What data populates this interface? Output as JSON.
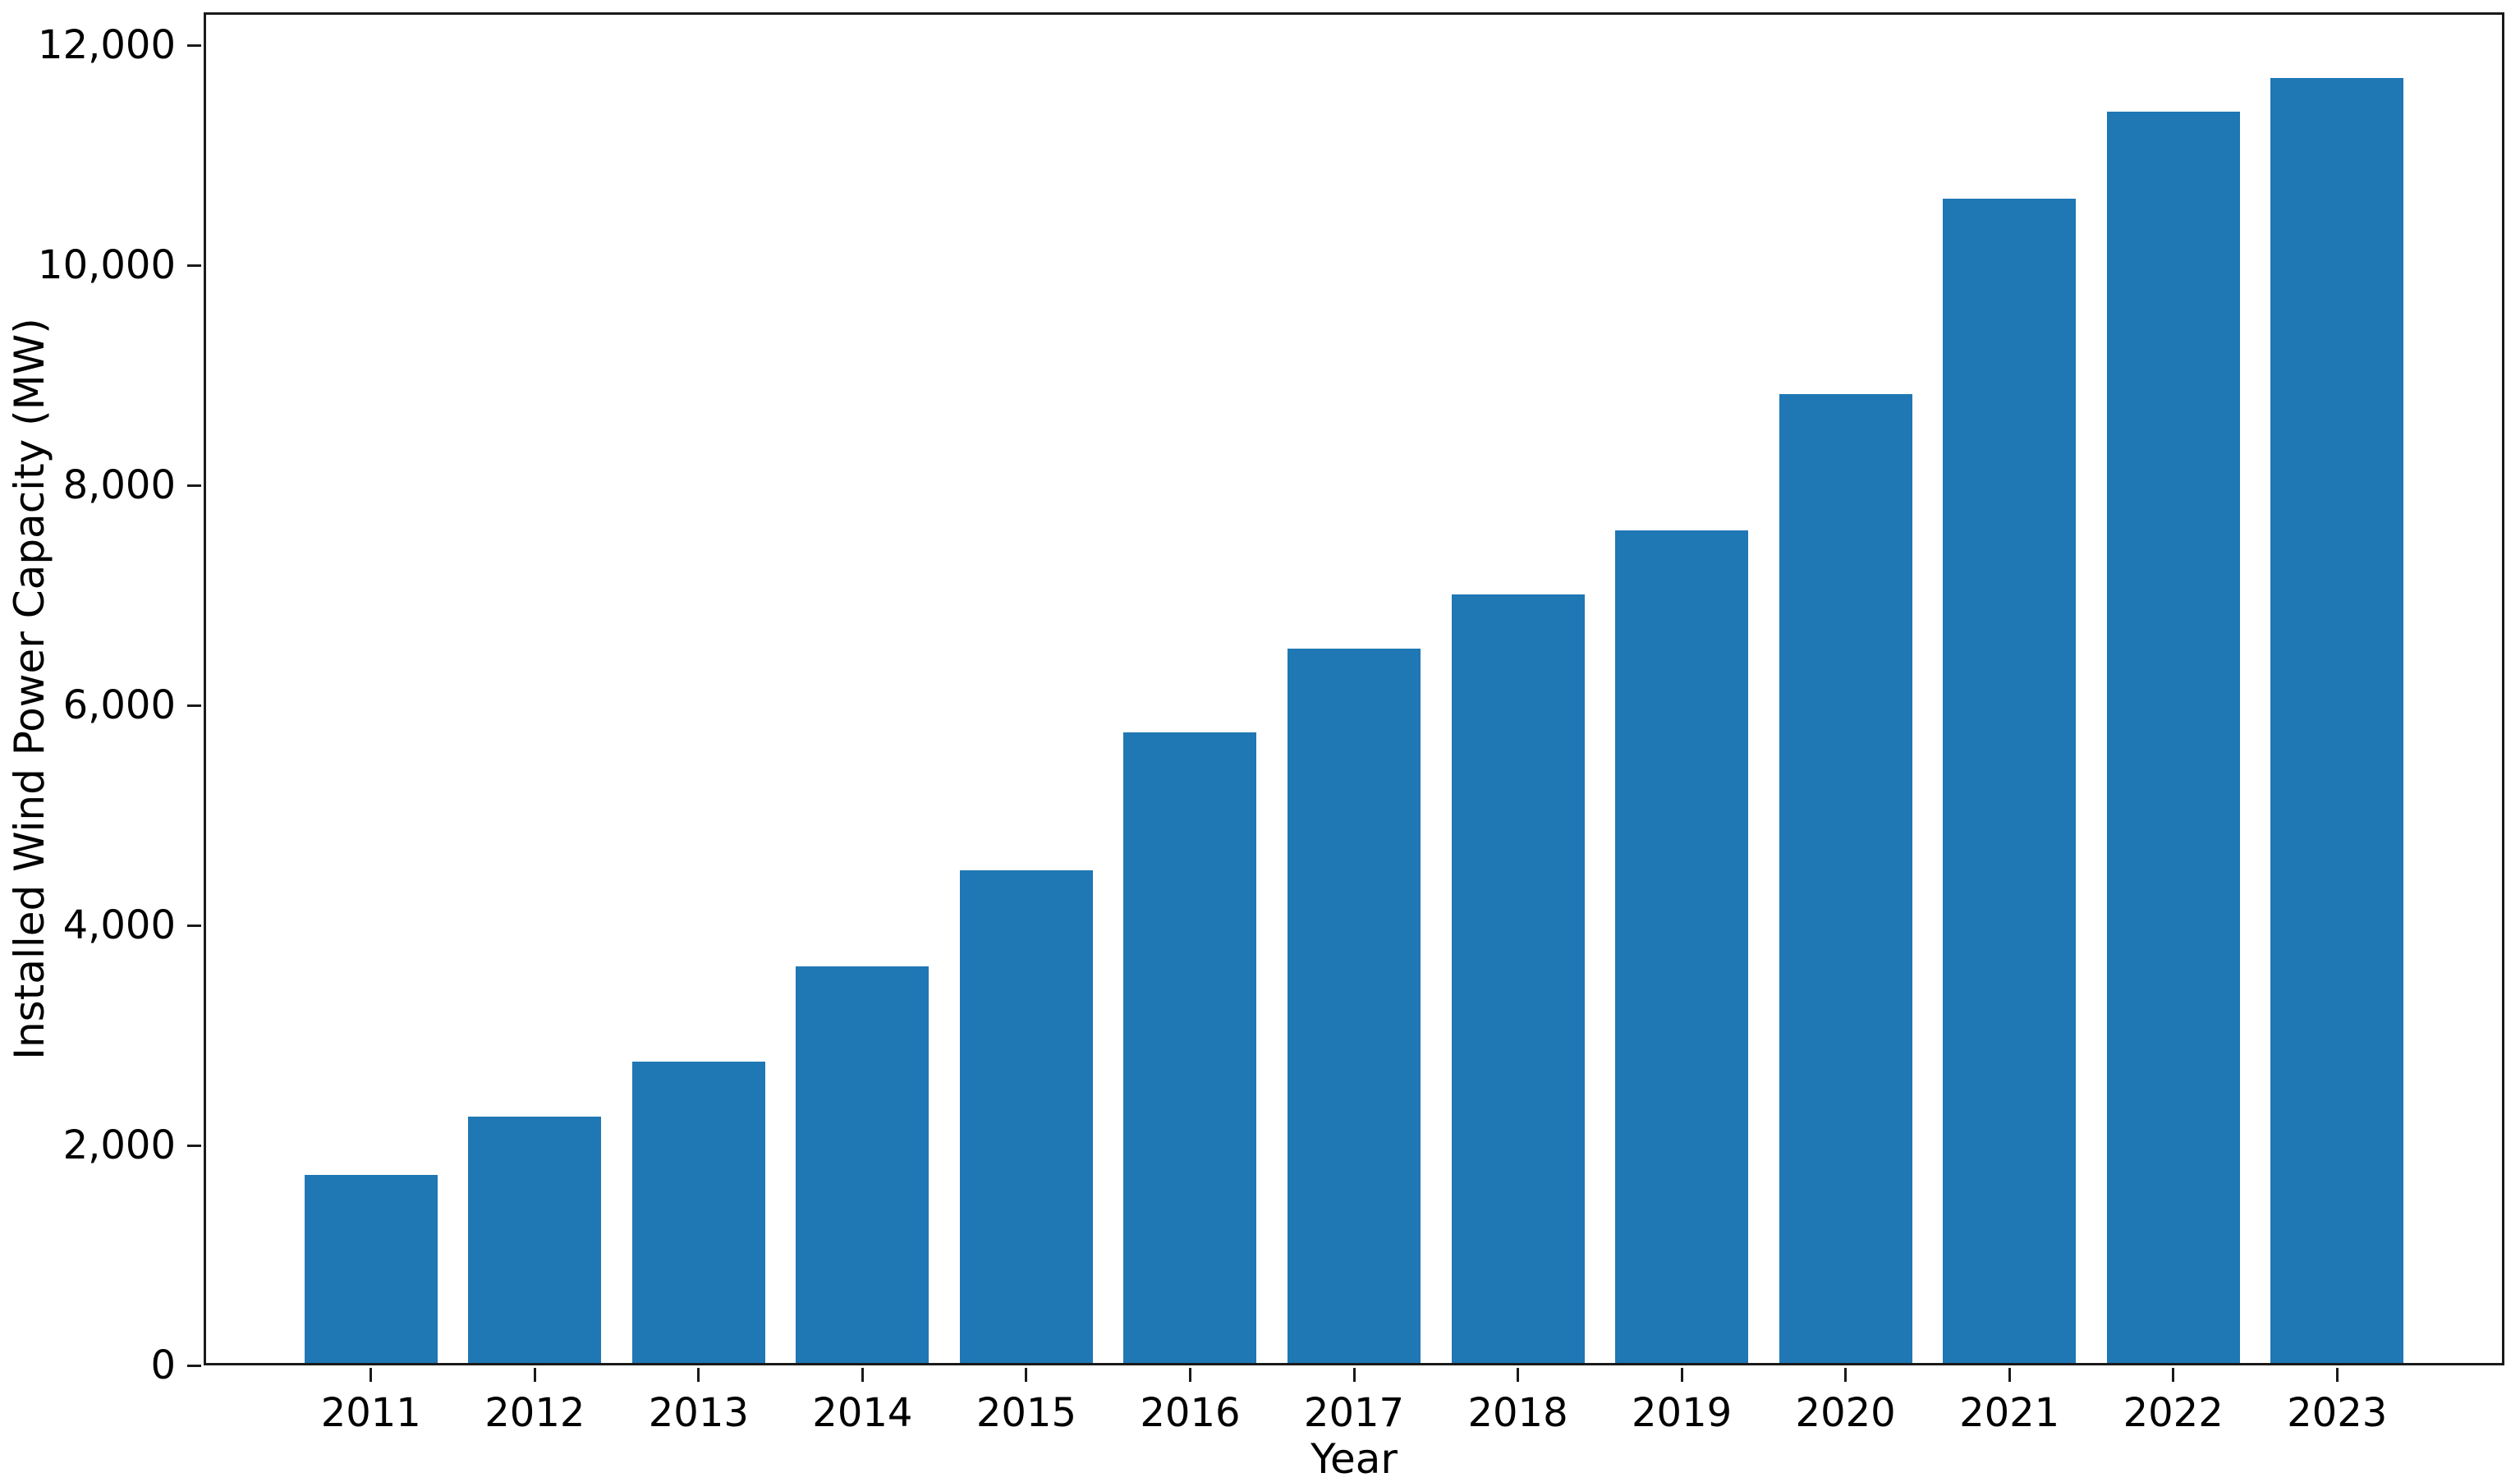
{
  "chart_data": {
    "type": "bar",
    "xlabel": "Year",
    "ylabel": "Installed Wind Power Capacity (MW)",
    "categories": [
      "2011",
      "2012",
      "2013",
      "2014",
      "2015",
      "2016",
      "2017",
      "2018",
      "2019",
      "2020",
      "2021",
      "2022",
      "2023"
    ],
    "values": [
      1729,
      2261,
      2759,
      3630,
      4503,
      5751,
      6516,
      7005,
      7591,
      8832,
      10607,
      11396,
      11704
    ],
    "yticks": [
      {
        "value": 0,
        "label": "0"
      },
      {
        "value": 2000,
        "label": "2,000"
      },
      {
        "value": 4000,
        "label": "4,000"
      },
      {
        "value": 6000,
        "label": "6,000"
      },
      {
        "value": 8000,
        "label": "8,000"
      },
      {
        "value": 10000,
        "label": "10,000"
      },
      {
        "value": 12000,
        "label": "12,000"
      }
    ],
    "ylim": [
      0,
      12300
    ],
    "bar_color": "#1f77b4",
    "axis_color": "#1a1a1a",
    "grid": false,
    "legend_position": "none"
  }
}
